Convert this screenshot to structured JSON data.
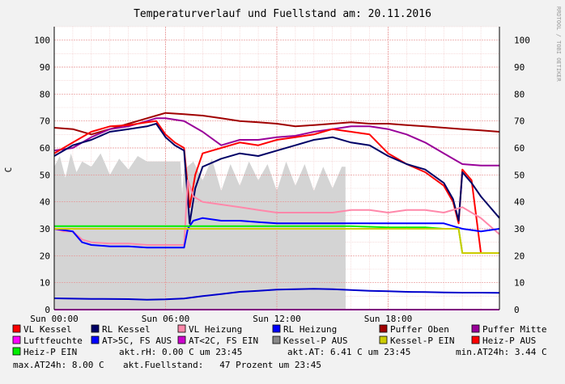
{
  "chart_data": {
    "type": "line",
    "title": "Temperaturverlauf und Fuellstand am: 20.11.2016",
    "ylabel": "C",
    "ylim": [
      0,
      105
    ],
    "yticks": [
      0,
      10,
      20,
      30,
      40,
      50,
      60,
      70,
      80,
      90,
      100
    ],
    "xlim_hours": [
      0,
      24
    ],
    "xticks": [
      {
        "h": 0,
        "label": "Sun 00:00"
      },
      {
        "h": 6,
        "label": "Sun 06:00"
      },
      {
        "h": 12,
        "label": "Sun 12:00"
      },
      {
        "h": 18,
        "label": "Sun 18:00"
      }
    ],
    "grid": true,
    "watermark": "RRDTOOL / TOBI OETIKER",
    "area": {
      "name": "Kessel-P AUS",
      "color": "#d4d4d4",
      "x_hours": [
        0,
        0.3,
        0.6,
        0.9,
        1.2,
        1.5,
        2,
        2.5,
        3,
        3.5,
        4,
        4.5,
        5,
        5.5,
        6,
        6.5,
        6.8,
        6.9,
        7,
        7.5,
        8,
        8.5,
        9,
        9.5,
        10,
        10.5,
        11,
        11.5,
        12,
        12.5,
        13,
        13.5,
        14,
        14.5,
        15,
        15.5,
        15.7,
        15.71
      ],
      "values": [
        53,
        57,
        49,
        58,
        51,
        55,
        53,
        58,
        50,
        56,
        52,
        57,
        55,
        55,
        55,
        55,
        55,
        43,
        52,
        55,
        48,
        56,
        44,
        54,
        46,
        55,
        48,
        54,
        44,
        55,
        46,
        54,
        44,
        53,
        45,
        53,
        53,
        0
      ]
    },
    "series": [
      {
        "name": "Puffer Oben",
        "color": "#a00000",
        "x": [
          0,
          1,
          2,
          3,
          4,
          5,
          5.5,
          6,
          7,
          8,
          9,
          10,
          11,
          12,
          13,
          14,
          15,
          16,
          17,
          18,
          19,
          20,
          21,
          22,
          23,
          24
        ],
        "values": [
          67.5,
          67,
          65,
          67,
          69,
          71,
          72,
          73,
          72.5,
          72,
          71,
          70,
          69.5,
          69,
          68,
          68.5,
          69,
          69.5,
          69,
          69,
          68.5,
          68,
          67.5,
          67,
          66.5,
          66
        ]
      },
      {
        "name": "Puffer Mitte",
        "color": "#990099",
        "x": [
          0,
          1,
          2,
          3,
          4,
          5,
          5.5,
          6,
          7,
          8,
          9,
          10,
          11,
          12,
          13,
          14,
          15,
          16,
          17,
          18,
          19,
          20,
          21,
          22,
          23,
          24
        ],
        "values": [
          59,
          60,
          64,
          67,
          68,
          70,
          71,
          71,
          70,
          66,
          61,
          63,
          63,
          64,
          64.5,
          66,
          67,
          68,
          68,
          67,
          65,
          62,
          58,
          54,
          53.5,
          53.5
        ]
      },
      {
        "name": "VL Kessel",
        "color": "#ff0000",
        "x": [
          0,
          1,
          2,
          3,
          4,
          5,
          5.5,
          6,
          6.5,
          7,
          7.3,
          7.6,
          8,
          9,
          10,
          11,
          12,
          13,
          14,
          15,
          16,
          17,
          18,
          19,
          20,
          21,
          21.5,
          21.8,
          22,
          22.5,
          23,
          24
        ],
        "values": [
          58,
          62,
          66,
          68,
          68.5,
          69.5,
          70,
          65,
          62,
          60,
          38,
          50,
          58,
          60,
          62,
          61,
          63,
          64,
          65,
          67,
          66,
          65,
          58,
          54,
          51,
          46,
          40,
          32,
          52,
          48,
          21,
          21
        ]
      },
      {
        "name": "RL Kessel",
        "color": "#000066",
        "x": [
          0,
          1,
          2,
          3,
          4,
          5,
          5.5,
          6,
          6.5,
          7,
          7.3,
          7.6,
          8,
          9,
          10,
          11,
          12,
          13,
          14,
          15,
          16,
          17,
          18,
          19,
          20,
          21,
          21.5,
          21.8,
          22,
          22.5,
          23,
          24
        ],
        "values": [
          57,
          61,
          63,
          66,
          67,
          68,
          69,
          64,
          61,
          59,
          32,
          45,
          53,
          56,
          58,
          57,
          59,
          61,
          63,
          64,
          62,
          61,
          57,
          54,
          52,
          47,
          41,
          33,
          51,
          47,
          42,
          34
        ]
      },
      {
        "name": "VL Heizung",
        "color": "#ff88aa",
        "x": [
          0,
          0.5,
          1,
          1.5,
          2,
          3,
          4,
          5,
          6,
          7,
          7.2,
          7.5,
          8,
          9,
          10,
          11,
          12,
          13,
          14,
          15,
          16,
          17,
          18,
          19,
          20,
          21,
          22,
          23,
          24
        ],
        "values": [
          30,
          29,
          29,
          26,
          25,
          24.5,
          24.5,
          24,
          24,
          24,
          48,
          42,
          40,
          39,
          38,
          37,
          36,
          36,
          36,
          36,
          37,
          37,
          36,
          37,
          37,
          36,
          38,
          34,
          28
        ]
      },
      {
        "name": "RL Heizung",
        "color": "#0000ff",
        "x": [
          0,
          1,
          1.5,
          2,
          3,
          4,
          5,
          6,
          7,
          7.2,
          7.5,
          8,
          9,
          10,
          11,
          12,
          13,
          14,
          15,
          16,
          17,
          18,
          19,
          20,
          21,
          21.5,
          22,
          23,
          24
        ],
        "values": [
          30,
          29,
          25,
          24,
          23.5,
          23.5,
          23,
          23,
          23,
          30,
          33,
          34,
          33,
          33,
          32.5,
          32,
          32,
          32,
          32,
          32,
          32,
          32,
          32,
          32,
          32,
          31,
          30,
          29,
          30
        ]
      },
      {
        "name": "Heiz-P EIN",
        "color": "#00ee00",
        "x": [
          0,
          2,
          4,
          6,
          8,
          10,
          12,
          14,
          16,
          18,
          20,
          21,
          21.8,
          22,
          24
        ],
        "values": [
          31,
          31,
          31,
          31,
          31,
          31,
          31,
          31,
          31,
          30.5,
          30.5,
          30,
          30,
          21,
          21
        ]
      },
      {
        "name": "Kessel-P EIN",
        "color": "#cccc00",
        "x": [
          0,
          4,
          8,
          12,
          16,
          20,
          21.5,
          21.8,
          22,
          24
        ],
        "values": [
          30,
          30,
          30,
          30,
          30,
          30,
          30,
          30,
          21,
          21
        ]
      },
      {
        "name": "AT>5C, FS AUS",
        "color": "#0000cc",
        "x": [
          0,
          2,
          4,
          5,
          6,
          7,
          8,
          9,
          10,
          11,
          12,
          13,
          14,
          15,
          16,
          17,
          18,
          19,
          20,
          21,
          22,
          23,
          24
        ],
        "values": [
          4.2,
          4,
          3.9,
          3.7,
          3.8,
          4.1,
          5,
          5.8,
          6.6,
          7,
          7.4,
          7.6,
          7.7,
          7.6,
          7.3,
          7,
          6.8,
          6.6,
          6.5,
          6.4,
          6.3,
          6.3,
          6.2
        ]
      },
      {
        "name": "Luftfeuchte",
        "color": "#ff00ff",
        "x": [
          0,
          24
        ],
        "values": [
          0,
          0
        ]
      }
    ],
    "legend": [
      {
        "label": "VL Kessel",
        "color": "#ff0000"
      },
      {
        "label": "RL Kessel",
        "color": "#000066"
      },
      {
        "label": "VL Heizung",
        "color": "#ff88aa"
      },
      {
        "label": "RL Heizung",
        "color": "#0000ff"
      },
      {
        "label": "Puffer Oben",
        "color": "#a00000"
      },
      {
        "label": "Puffer Mitte",
        "color": "#990099"
      },
      {
        "label": "Luftfeuchte",
        "color": "#ff00ff"
      },
      {
        "label": "AT>5C, FS AUS",
        "color": "#0000ff"
      },
      {
        "label": "AT<2C, FS EIN",
        "color": "#cc00cc"
      },
      {
        "label": "Kessel-P AUS",
        "color": "#888888"
      },
      {
        "label": "Kessel-P EIN",
        "color": "#cccc00"
      },
      {
        "label": "Heiz-P AUS",
        "color": "#ff0000"
      },
      {
        "label": "Heiz-P EIN",
        "color": "#00ee00"
      }
    ],
    "status": {
      "rh": "akt.rH: 0.00 C um 23:45",
      "at": "akt.AT: 6.41 C um 23:45",
      "min": "min.AT24h: 3.44 C",
      "max": "max.AT24h: 8.00 C",
      "fill": "akt.Fuellstand:   47 Prozent um 23:45"
    }
  }
}
